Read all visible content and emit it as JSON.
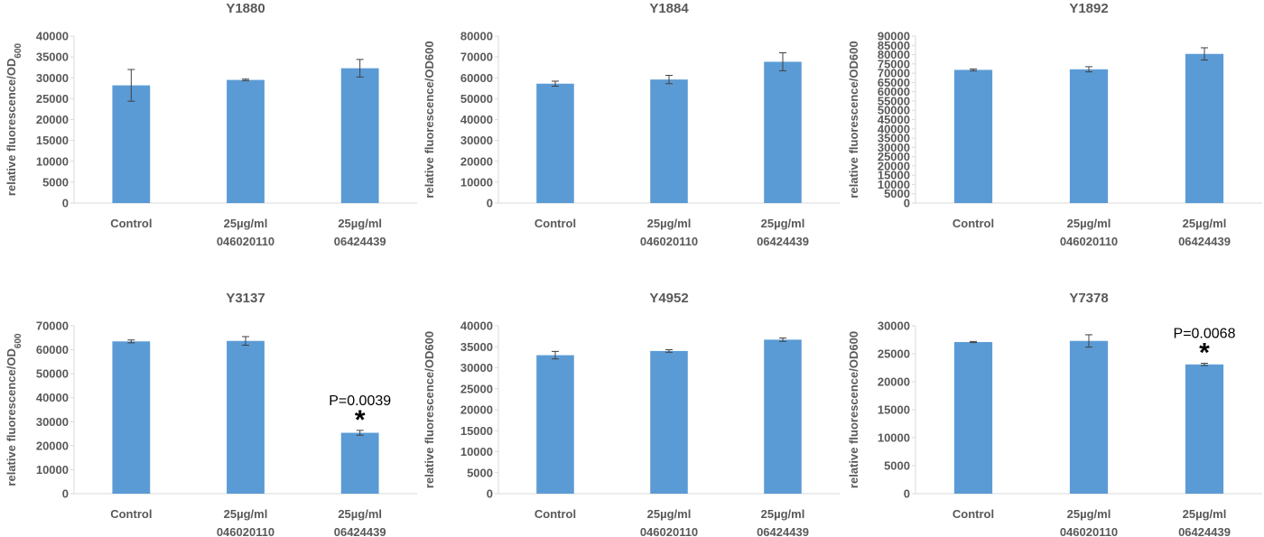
{
  "chart_data": [
    {
      "type": "bar",
      "title": "Y1880",
      "ylabel": "relative fluorescence/OD",
      "ylabel_sub": "600",
      "categories": [
        [
          "Control"
        ],
        [
          "25µg/ml",
          "046020110"
        ],
        [
          "25µg/ml",
          "06424439"
        ]
      ],
      "ylim": [
        0,
        40000
      ],
      "yticks": [
        0,
        5000,
        10000,
        15000,
        20000,
        25000,
        30000,
        35000,
        40000
      ],
      "series": [
        {
          "values": [
            28200,
            29500,
            32300
          ],
          "errors": [
            3800,
            200,
            2100
          ],
          "color": "#5B9BD5"
        }
      ],
      "annotations": []
    },
    {
      "type": "bar",
      "title": "Y1884",
      "ylabel": "relative fluorescence/OD600",
      "ylabel_sub": "",
      "categories": [
        [
          "Control"
        ],
        [
          "25µg/ml",
          "046020110"
        ],
        [
          "25µg/ml",
          "06424439"
        ]
      ],
      "ylim": [
        0,
        80000
      ],
      "yticks": [
        0,
        10000,
        20000,
        30000,
        40000,
        50000,
        60000,
        70000,
        80000
      ],
      "series": [
        {
          "values": [
            57200,
            59200,
            67700
          ],
          "errors": [
            1200,
            2000,
            4300
          ],
          "color": "#5B9BD5"
        }
      ],
      "annotations": []
    },
    {
      "type": "bar",
      "title": "Y1892",
      "ylabel": "relative fluorescence/OD600",
      "ylabel_sub": "",
      "categories": [
        [
          "Control"
        ],
        [
          "25µg/ml",
          "046020110"
        ],
        [
          "25µg/ml",
          "06424439"
        ]
      ],
      "ylim": [
        0,
        90000
      ],
      "yticks": [
        0,
        5000,
        10000,
        15000,
        20000,
        25000,
        30000,
        35000,
        40000,
        45000,
        50000,
        55000,
        60000,
        65000,
        70000,
        75000,
        80000,
        85000,
        90000
      ],
      "series": [
        {
          "values": [
            71800,
            72100,
            80400
          ],
          "errors": [
            500,
            1400,
            3300
          ],
          "color": "#5B9BD5"
        }
      ],
      "annotations": []
    },
    {
      "type": "bar",
      "title": "Y3137",
      "ylabel": "relative fluorescence/OD",
      "ylabel_sub": "600",
      "categories": [
        [
          "Control"
        ],
        [
          "25µg/ml",
          "046020110"
        ],
        [
          "25µg/ml",
          "06424439"
        ]
      ],
      "ylim": [
        0,
        70000
      ],
      "yticks": [
        0,
        10000,
        20000,
        30000,
        40000,
        50000,
        60000,
        70000
      ],
      "series": [
        {
          "values": [
            63500,
            63700,
            25400
          ],
          "errors": [
            600,
            1800,
            1000
          ],
          "color": "#5B9BD5"
        }
      ],
      "annotations": [
        {
          "category_index": 2,
          "p_text": "P=0.0039",
          "mark": "*"
        }
      ]
    },
    {
      "type": "bar",
      "title": "Y4952",
      "ylabel": "relative fluorescence/OD600",
      "ylabel_sub": "",
      "categories": [
        [
          "Control"
        ],
        [
          "25µg/ml",
          "046020110"
        ],
        [
          "25µg/ml",
          "06424439"
        ]
      ],
      "ylim": [
        0,
        40000
      ],
      "yticks": [
        0,
        5000,
        10000,
        15000,
        20000,
        25000,
        30000,
        35000,
        40000
      ],
      "series": [
        {
          "values": [
            33000,
            34000,
            36700
          ],
          "errors": [
            900,
            300,
            400
          ],
          "color": "#5B9BD5"
        }
      ],
      "annotations": []
    },
    {
      "type": "bar",
      "title": "Y7378",
      "ylabel": "relative fluorescence/OD600",
      "ylabel_sub": "",
      "categories": [
        [
          "Control"
        ],
        [
          "25µg/ml",
          "046020110"
        ],
        [
          "25µg/ml",
          "06424439"
        ]
      ],
      "ylim": [
        0,
        30000
      ],
      "yticks": [
        0,
        5000,
        10000,
        15000,
        20000,
        25000,
        30000
      ],
      "series": [
        {
          "values": [
            27100,
            27300,
            23100
          ],
          "errors": [
            100,
            1100,
            200
          ],
          "color": "#5B9BD5"
        }
      ],
      "annotations": [
        {
          "category_index": 2,
          "p_text": "P=0.0068",
          "mark": "*"
        }
      ]
    }
  ]
}
